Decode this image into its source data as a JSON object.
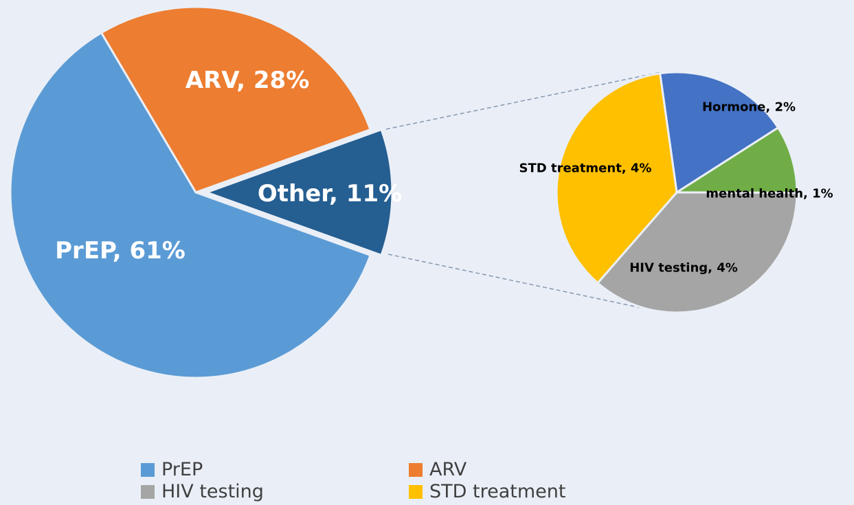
{
  "chart_data": [
    {
      "type": "pie",
      "categories": [
        "PrEP",
        "ARV",
        "Other"
      ],
      "values": [
        61,
        28,
        11
      ],
      "value_labels": [
        "PrEP, 61%",
        "ARV, 28%",
        "Other, 11%"
      ],
      "colors": [
        "#5b9bd5",
        "#ed7d31",
        "#255e91"
      ]
    },
    {
      "type": "pie",
      "categories": [
        "Hormone",
        "mental health",
        "HIV testing",
        "STD treatment"
      ],
      "values": [
        2,
        1,
        4,
        4
      ],
      "value_labels": [
        "Hormone, 2%",
        "mental health, 1%",
        "HIV testing, 4%",
        "STD treatment, 4%"
      ],
      "colors": [
        "#4472c4",
        "#70ad47",
        "#a5a5a5",
        "#ffc000"
      ]
    }
  ]
}
